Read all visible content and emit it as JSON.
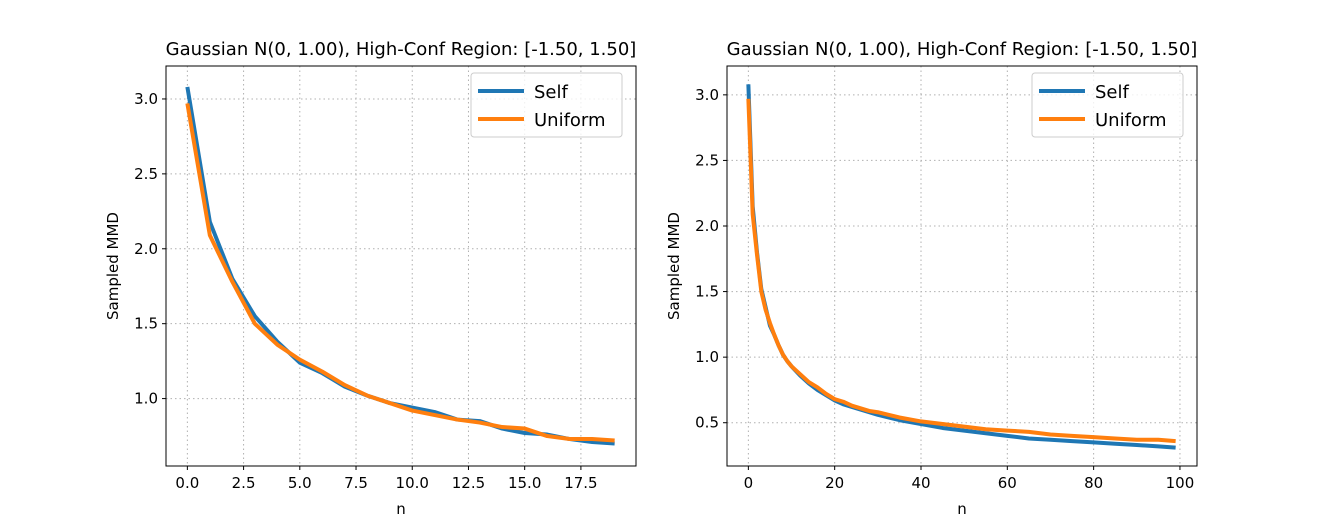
{
  "chart_data": [
    {
      "type": "line",
      "title": "Gaussian N(0, 1.00), High-Conf Region: [-1.50, 1.50]",
      "xlabel": "n",
      "ylabel": "Sampled MMD",
      "xlim": [
        -0.95,
        19.95
      ],
      "ylim": [
        0.55,
        3.22
      ],
      "xticks": [
        0.0,
        2.5,
        5.0,
        7.5,
        10.0,
        12.5,
        15.0,
        17.5
      ],
      "xtick_labels": [
        "0.0",
        "2.5",
        "5.0",
        "7.5",
        "10.0",
        "12.5",
        "15.0",
        "17.5"
      ],
      "yticks": [
        1.0,
        1.5,
        2.0,
        2.5,
        3.0
      ],
      "ytick_labels": [
        "1.0",
        "1.5",
        "2.0",
        "2.5",
        "3.0"
      ],
      "grid": true,
      "legend_position": "top-right",
      "series": [
        {
          "name": "Self",
          "color": "#1f77b4",
          "x": [
            0,
            1,
            2,
            3,
            4,
            5,
            6,
            7,
            8,
            9,
            10,
            11,
            12,
            13,
            14,
            15,
            16,
            17,
            18,
            19
          ],
          "values": [
            3.08,
            2.18,
            1.8,
            1.55,
            1.38,
            1.24,
            1.17,
            1.08,
            1.02,
            0.97,
            0.94,
            0.91,
            0.86,
            0.85,
            0.8,
            0.77,
            0.76,
            0.73,
            0.71,
            0.7
          ]
        },
        {
          "name": "Uniform",
          "color": "#ff7f0e",
          "x": [
            0,
            1,
            2,
            3,
            4,
            5,
            6,
            7,
            8,
            9,
            10,
            11,
            12,
            13,
            14,
            15,
            16,
            17,
            18,
            19
          ],
          "values": [
            2.97,
            2.09,
            1.78,
            1.5,
            1.36,
            1.26,
            1.18,
            1.09,
            1.02,
            0.97,
            0.92,
            0.89,
            0.86,
            0.84,
            0.81,
            0.8,
            0.75,
            0.73,
            0.73,
            0.72
          ]
        }
      ]
    },
    {
      "type": "line",
      "title": "Gaussian N(0, 1.00), High-Conf Region: [-1.50, 1.50]",
      "xlabel": "n",
      "ylabel": "Sampled MMD",
      "xlim": [
        -4.95,
        103.95
      ],
      "ylim": [
        0.17,
        3.22
      ],
      "xticks": [
        0,
        20,
        40,
        60,
        80,
        100
      ],
      "xtick_labels": [
        "0",
        "20",
        "40",
        "60",
        "80",
        "100"
      ],
      "yticks": [
        0.5,
        1.0,
        1.5,
        2.0,
        2.5,
        3.0
      ],
      "ytick_labels": [
        "0.5",
        "1.0",
        "1.5",
        "2.0",
        "2.5",
        "3.0"
      ],
      "grid": true,
      "legend_position": "top-right",
      "series": [
        {
          "name": "Self",
          "color": "#1f77b4",
          "x": [
            0,
            1,
            2,
            3,
            4,
            5,
            6,
            7,
            8,
            9,
            10,
            12,
            14,
            16,
            18,
            20,
            22,
            24,
            26,
            28,
            30,
            35,
            40,
            45,
            50,
            55,
            60,
            65,
            70,
            75,
            80,
            85,
            90,
            95,
            99
          ],
          "values": [
            3.08,
            2.15,
            1.8,
            1.52,
            1.38,
            1.24,
            1.17,
            1.09,
            1.02,
            0.97,
            0.93,
            0.86,
            0.8,
            0.75,
            0.71,
            0.67,
            0.64,
            0.62,
            0.6,
            0.58,
            0.56,
            0.52,
            0.49,
            0.46,
            0.44,
            0.42,
            0.4,
            0.38,
            0.37,
            0.36,
            0.35,
            0.34,
            0.33,
            0.32,
            0.31
          ]
        },
        {
          "name": "Uniform",
          "color": "#ff7f0e",
          "x": [
            0,
            1,
            2,
            3,
            4,
            5,
            6,
            7,
            8,
            9,
            10,
            12,
            14,
            16,
            18,
            20,
            22,
            24,
            26,
            28,
            30,
            35,
            40,
            45,
            50,
            55,
            60,
            65,
            70,
            75,
            80,
            85,
            90,
            95,
            99
          ],
          "values": [
            2.97,
            2.09,
            1.78,
            1.5,
            1.36,
            1.26,
            1.17,
            1.09,
            1.02,
            0.97,
            0.93,
            0.87,
            0.81,
            0.77,
            0.72,
            0.68,
            0.66,
            0.63,
            0.61,
            0.59,
            0.58,
            0.54,
            0.51,
            0.49,
            0.47,
            0.45,
            0.44,
            0.43,
            0.41,
            0.4,
            0.39,
            0.38,
            0.37,
            0.37,
            0.36
          ]
        }
      ]
    }
  ]
}
